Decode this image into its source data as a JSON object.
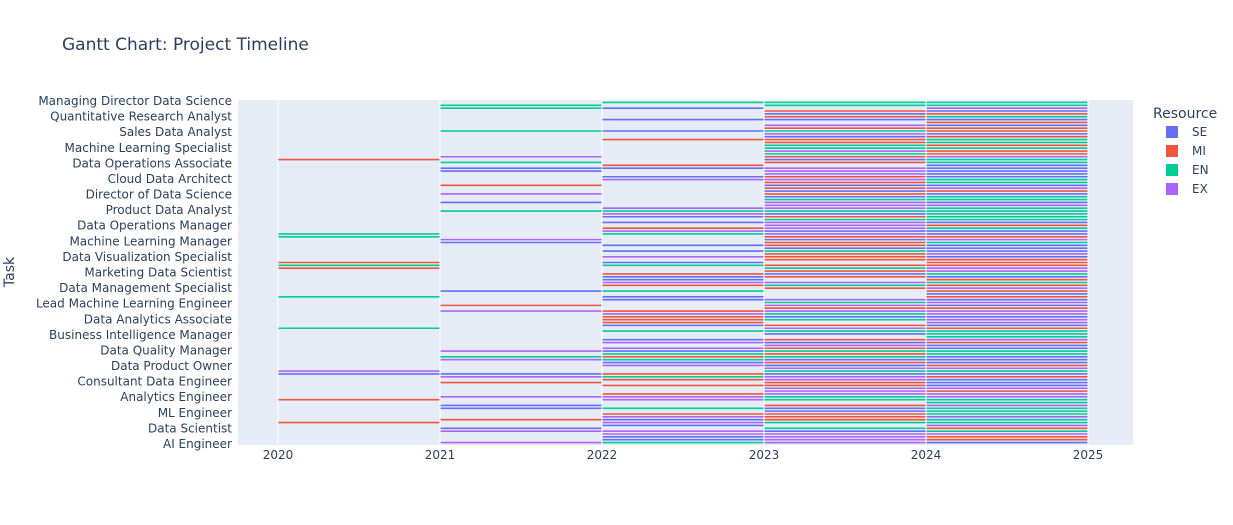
{
  "chart_data": {
    "type": "gantt",
    "title": "Gantt Chart: Project Timeline",
    "ylabel": "Task",
    "xlabel": "",
    "x_ticks": [
      "2020",
      "2021",
      "2022",
      "2023",
      "2024",
      "2025"
    ],
    "xlim": [
      2020,
      2025
    ],
    "y_tick_labels": [
      "Managing Director Data Science",
      "Quantitative Research Analyst",
      "Sales Data Analyst",
      "Machine Learning Specialist",
      "Data Operations Associate",
      "Cloud Data Architect",
      "Director of Data Science",
      "Product Data Analyst",
      "Data Operations Manager",
      "Machine Learning Manager",
      "Data Visualization Specialist",
      "Marketing Data Scientist",
      "Data Management Specialist",
      "Lead Machine Learning Engineer",
      "Data Analytics Associate",
      "Business Intelligence Manager",
      "Data Quality Manager",
      "Data Product Owner",
      "Consultant Data Engineer",
      "Analytics Engineer",
      "ML Engineer",
      "Data Scientist",
      "AI Engineer"
    ],
    "legend_title": "Resource",
    "legend_position": "right",
    "series": [
      {
        "name": "SE",
        "color": "#636efa"
      },
      {
        "name": "MI",
        "color": "#ef553b"
      },
      {
        "name": "EN",
        "color": "#00cc96"
      },
      {
        "name": "EX",
        "color": "#ab63fa"
      }
    ],
    "year_density": [
      {
        "year": 2020,
        "density": 0.18
      },
      {
        "year": 2021,
        "density": 0.32
      },
      {
        "year": 2022,
        "density": 0.62
      },
      {
        "year": 2023,
        "density": 0.92
      },
      {
        "year": 2024,
        "density": 0.97
      }
    ]
  }
}
